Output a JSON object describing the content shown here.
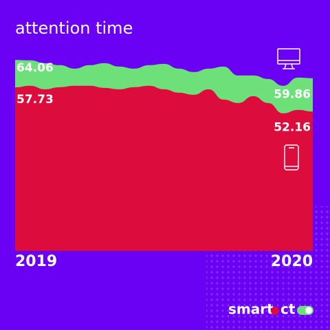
{
  "chart_data": {
    "type": "area",
    "title": "attention time",
    "categories": [
      "2019",
      null,
      null,
      null,
      null,
      null,
      null,
      null,
      null,
      null,
      null,
      null,
      null,
      null,
      null,
      null,
      null,
      null,
      null,
      null,
      "2020"
    ],
    "series": [
      {
        "color": "#6ee07a",
        "values": [
          64.06,
          63.97,
          63.33,
          62.86,
          62.06,
          62.86,
          63.33,
          62.54,
          62.06,
          62.86,
          63.17,
          62.06,
          61.27,
          62.06,
          62.54,
          60.48,
          60.48,
          59.68,
          58.1,
          60.0,
          59.86
        ]
      },
      {
        "color": "#dc0d3c",
        "values": [
          57.73,
          58.1,
          57.3,
          57.78,
          58.1,
          58.1,
          57.62,
          57.3,
          57.78,
          58.1,
          57.3,
          56.51,
          56.03,
          57.3,
          54.92,
          54.13,
          55.71,
          54.13,
          51.75,
          52.54,
          52.16
        ]
      }
    ],
    "ylim": [
      20,
      66
    ]
  },
  "brand": {
    "left": "smart",
    "right": "ct"
  }
}
